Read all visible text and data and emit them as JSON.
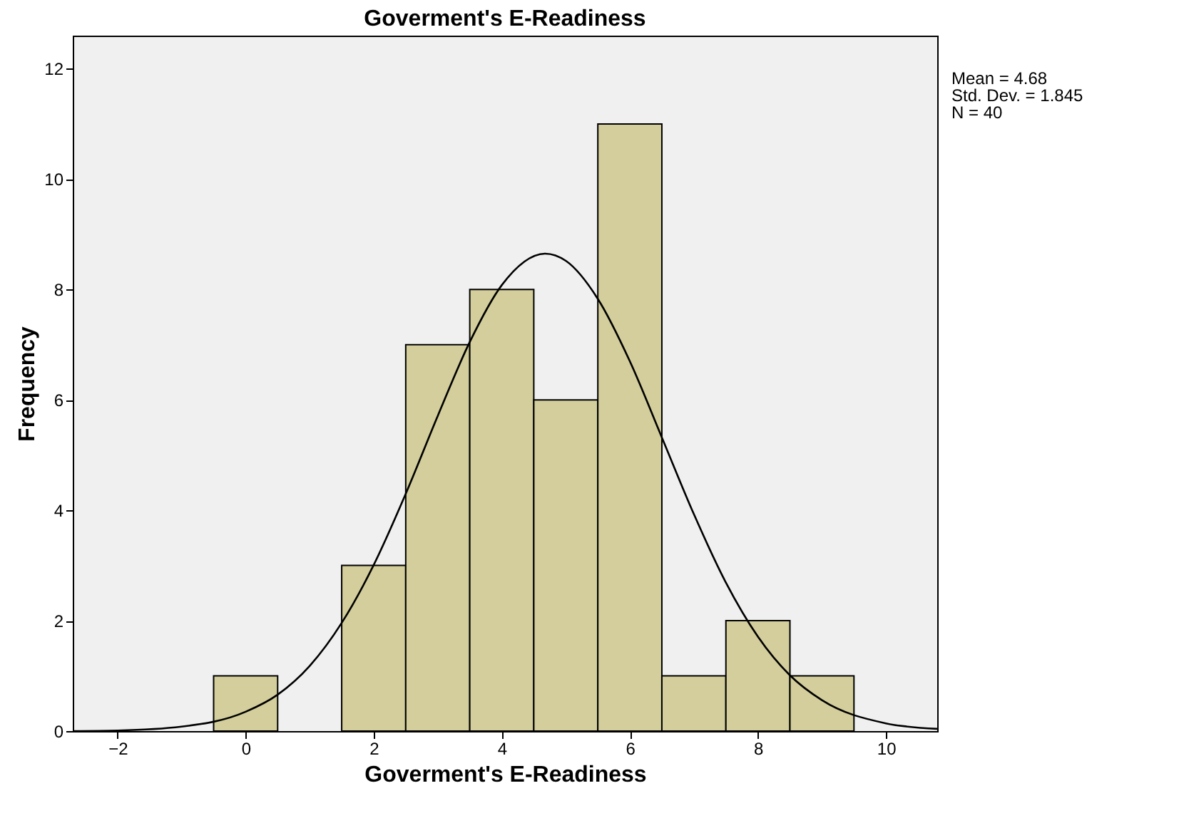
{
  "chart_data": {
    "type": "histogram",
    "title": "Goverment's E-Readiness",
    "xlabel": "Goverment's E-Readiness",
    "ylabel": "Frequency",
    "bins": [
      -0.5,
      0.5,
      1.5,
      2.5,
      3.5,
      4.5,
      5.5,
      6.5,
      7.5,
      8.5,
      9.5
    ],
    "values": [
      1,
      0,
      3,
      7,
      8,
      6,
      11,
      1,
      2,
      1
    ],
    "color": "#d3ce9b",
    "series": [
      {
        "type": "line",
        "color": "#000000",
        "x": [
          -2.7,
          -2,
          -1,
          0,
          0.5,
          1,
          1.5,
          2,
          2.5,
          3,
          3.5,
          4,
          4.68,
          5,
          5.5,
          6,
          6.5,
          7,
          7.5,
          8,
          8.5,
          9,
          10,
          10.8
        ],
        "values": [
          0.0,
          0.01,
          0.08,
          0.35,
          0.66,
          1.18,
          1.96,
          3.01,
          4.3,
          5.71,
          7.05,
          8.08,
          8.65,
          8.52,
          7.83,
          6.7,
          5.32,
          3.93,
          2.69,
          1.71,
          1.01,
          0.56,
          0.14,
          0.04
        ]
      }
    ],
    "xlim": [
      -2.7,
      10.8
    ],
    "ylim": [
      0,
      12.6
    ],
    "xticks": [
      -2,
      0,
      2,
      4,
      6,
      8,
      10
    ],
    "yticks": [
      0,
      2,
      4,
      6,
      8,
      10,
      12
    ],
    "grid": false,
    "annotations": [
      "Mean = 4.68",
      "Std. Dev. = 1.845",
      "N = 40"
    ]
  }
}
